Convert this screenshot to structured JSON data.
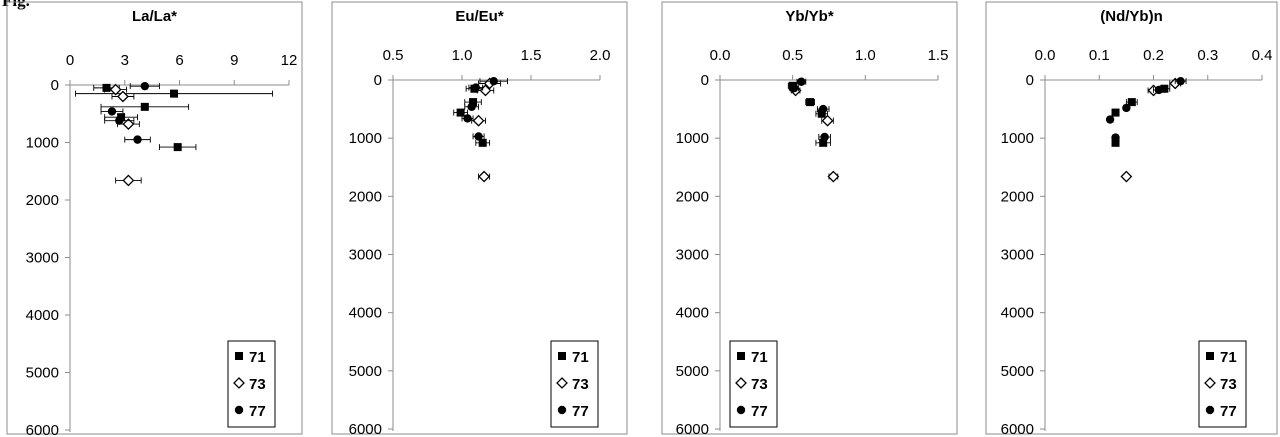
{
  "figure_label": "Fig.",
  "chart_data": [
    {
      "type": "scatter",
      "title": "La/La*",
      "xlabel": "",
      "ylabel": "",
      "xlim": [
        0,
        12
      ],
      "xticks": [
        0,
        3,
        6,
        9,
        12
      ],
      "xtick_labels": [
        "0",
        "3",
        "6",
        "9",
        "12"
      ],
      "ylim": [
        0,
        6000
      ],
      "yticks": [
        0,
        1000,
        2000,
        3000,
        4000,
        5000,
        6000
      ],
      "ytick_labels": [
        "0",
        "1000",
        "2000",
        "3000",
        "4000",
        "5000",
        "6000"
      ],
      "y_inverted": true,
      "x_axis_position": "top",
      "grid": false,
      "legend": "bottom-right",
      "series": [
        {
          "name": "71",
          "marker": "square",
          "points": [
            {
              "x": 2.0,
              "y": 50,
              "xerr": 0.7
            },
            {
              "x": 5.7,
              "y": 150,
              "xerr": 5.4
            },
            {
              "x": 4.1,
              "y": 380,
              "xerr": 2.4
            },
            {
              "x": 2.8,
              "y": 560,
              "xerr": 0.9
            },
            {
              "x": 5.9,
              "y": 1080,
              "xerr": 1.0
            }
          ]
        },
        {
          "name": "73",
          "marker": "diamond",
          "points": [
            {
              "x": 2.5,
              "y": 80,
              "xerr": 0.6
            },
            {
              "x": 2.9,
              "y": 200,
              "xerr": 0.6
            },
            {
              "x": 3.2,
              "y": 680,
              "xerr": 0.6
            },
            {
              "x": 3.2,
              "y": 1660,
              "xerr": 0.7
            }
          ]
        },
        {
          "name": "77",
          "marker": "circle",
          "points": [
            {
              "x": 4.1,
              "y": 20,
              "xerr": 0.8
            },
            {
              "x": 2.3,
              "y": 460,
              "xerr": 0.6
            },
            {
              "x": 2.7,
              "y": 620,
              "xerr": 0.8
            },
            {
              "x": 3.7,
              "y": 950,
              "xerr": 0.7
            }
          ]
        }
      ]
    },
    {
      "type": "scatter",
      "title": "Eu/Eu*",
      "xlabel": "",
      "ylabel": "",
      "xlim": [
        0.5,
        2.0
      ],
      "xticks": [
        0.5,
        1.0,
        1.5,
        2.0
      ],
      "xtick_labels": [
        "0.5",
        "1.0",
        "1.5",
        "2.0"
      ],
      "ylim": [
        0,
        6000
      ],
      "yticks": [
        0,
        1000,
        2000,
        3000,
        4000,
        5000,
        6000
      ],
      "ytick_labels": [
        "0",
        "1000",
        "2000",
        "3000",
        "4000",
        "5000",
        "6000"
      ],
      "y_inverted": true,
      "x_axis_position": "top",
      "grid": false,
      "legend": "bottom-right",
      "series": [
        {
          "name": "71",
          "marker": "square",
          "points": [
            {
              "x": 1.09,
              "y": 150,
              "xerr": 0.06
            },
            {
              "x": 1.08,
              "y": 380,
              "xerr": 0.06
            },
            {
              "x": 0.99,
              "y": 560,
              "xerr": 0.05
            },
            {
              "x": 1.15,
              "y": 1080,
              "xerr": 0.05
            }
          ]
        },
        {
          "name": "73",
          "marker": "diamond",
          "points": [
            {
              "x": 1.2,
              "y": 60,
              "xerr": 0.08
            },
            {
              "x": 1.17,
              "y": 180,
              "xerr": 0.06
            },
            {
              "x": 1.12,
              "y": 700,
              "xerr": 0.05
            },
            {
              "x": 1.16,
              "y": 1660,
              "xerr": 0.04
            }
          ]
        },
        {
          "name": "77",
          "marker": "circle",
          "points": [
            {
              "x": 1.23,
              "y": 20,
              "xerr": 0.1
            },
            {
              "x": 1.1,
              "y": 130,
              "xerr": 0.05
            },
            {
              "x": 1.07,
              "y": 460,
              "xerr": 0.05
            },
            {
              "x": 1.04,
              "y": 660,
              "xerr": 0.04
            },
            {
              "x": 1.12,
              "y": 970,
              "xerr": 0.04
            }
          ]
        }
      ]
    },
    {
      "type": "scatter",
      "title": "Yb/Yb*",
      "xlabel": "",
      "ylabel": "",
      "xlim": [
        0,
        1.5
      ],
      "xticks": [
        0,
        0.5,
        1.0,
        1.5
      ],
      "xtick_labels": [
        "0.0",
        "0.5",
        "1.0",
        "1.5"
      ],
      "ylim": [
        0,
        6000
      ],
      "yticks": [
        0,
        1000,
        2000,
        3000,
        4000,
        5000,
        6000
      ],
      "ytick_labels": [
        "0",
        "1000",
        "2000",
        "3000",
        "4000",
        "5000",
        "6000"
      ],
      "y_inverted": true,
      "x_axis_position": "top",
      "grid": false,
      "legend": "bottom-left",
      "series": [
        {
          "name": "71",
          "marker": "square",
          "points": [
            {
              "x": 0.5,
              "y": 100,
              "xerr": 0.03
            },
            {
              "x": 0.62,
              "y": 380,
              "xerr": 0.03
            },
            {
              "x": 0.7,
              "y": 580,
              "xerr": 0.04
            },
            {
              "x": 0.71,
              "y": 1080,
              "xerr": 0.05
            }
          ]
        },
        {
          "name": "73",
          "marker": "diamond",
          "points": [
            {
              "x": 0.52,
              "y": 180,
              "xerr": 0.03
            },
            {
              "x": 0.74,
              "y": 700,
              "xerr": 0.04
            },
            {
              "x": 0.78,
              "y": 1660,
              "xerr": 0.03
            }
          ]
        },
        {
          "name": "77",
          "marker": "circle",
          "points": [
            {
              "x": 0.56,
              "y": 30,
              "xerr": 0.03
            },
            {
              "x": 0.51,
              "y": 140,
              "xerr": 0.03
            },
            {
              "x": 0.71,
              "y": 500,
              "xerr": 0.04
            },
            {
              "x": 0.72,
              "y": 980,
              "xerr": 0.04
            }
          ]
        }
      ]
    },
    {
      "type": "scatter",
      "title": "(Nd/Yb)n",
      "xlabel": "",
      "ylabel": "",
      "xlim": [
        0,
        0.4
      ],
      "xticks": [
        0,
        0.1,
        0.2,
        0.3,
        0.4
      ],
      "xtick_labels": [
        "0.0",
        "0.1",
        "0.2",
        "0.3",
        "0.4"
      ],
      "ylim": [
        0,
        6000
      ],
      "yticks": [
        0,
        1000,
        2000,
        3000,
        4000,
        5000,
        6000
      ],
      "ytick_labels": [
        "0",
        "1000",
        "2000",
        "3000",
        "4000",
        "5000",
        "6000"
      ],
      "y_inverted": true,
      "x_axis_position": "top",
      "grid": false,
      "legend": "bottom-right",
      "series": [
        {
          "name": "71",
          "marker": "square",
          "points": [
            {
              "x": 0.22,
              "y": 150,
              "xerr": 0.01
            },
            {
              "x": 0.16,
              "y": 380,
              "xerr": 0.01
            },
            {
              "x": 0.13,
              "y": 560,
              "xerr": 0.005
            },
            {
              "x": 0.13,
              "y": 1080,
              "xerr": 0.005
            }
          ]
        },
        {
          "name": "73",
          "marker": "diamond",
          "points": [
            {
              "x": 0.24,
              "y": 60,
              "xerr": 0.01
            },
            {
              "x": 0.2,
              "y": 180,
              "xerr": 0.01
            },
            {
              "x": 0.15,
              "y": 1660,
              "xerr": 0.005
            }
          ]
        },
        {
          "name": "77",
          "marker": "circle",
          "points": [
            {
              "x": 0.25,
              "y": 20,
              "xerr": 0.01
            },
            {
              "x": 0.21,
              "y": 170,
              "xerr": 0.01
            },
            {
              "x": 0.15,
              "y": 480,
              "xerr": 0.005
            },
            {
              "x": 0.12,
              "y": 680,
              "xerr": 0.005
            },
            {
              "x": 0.13,
              "y": 990,
              "xerr": 0.005
            }
          ]
        }
      ]
    }
  ]
}
